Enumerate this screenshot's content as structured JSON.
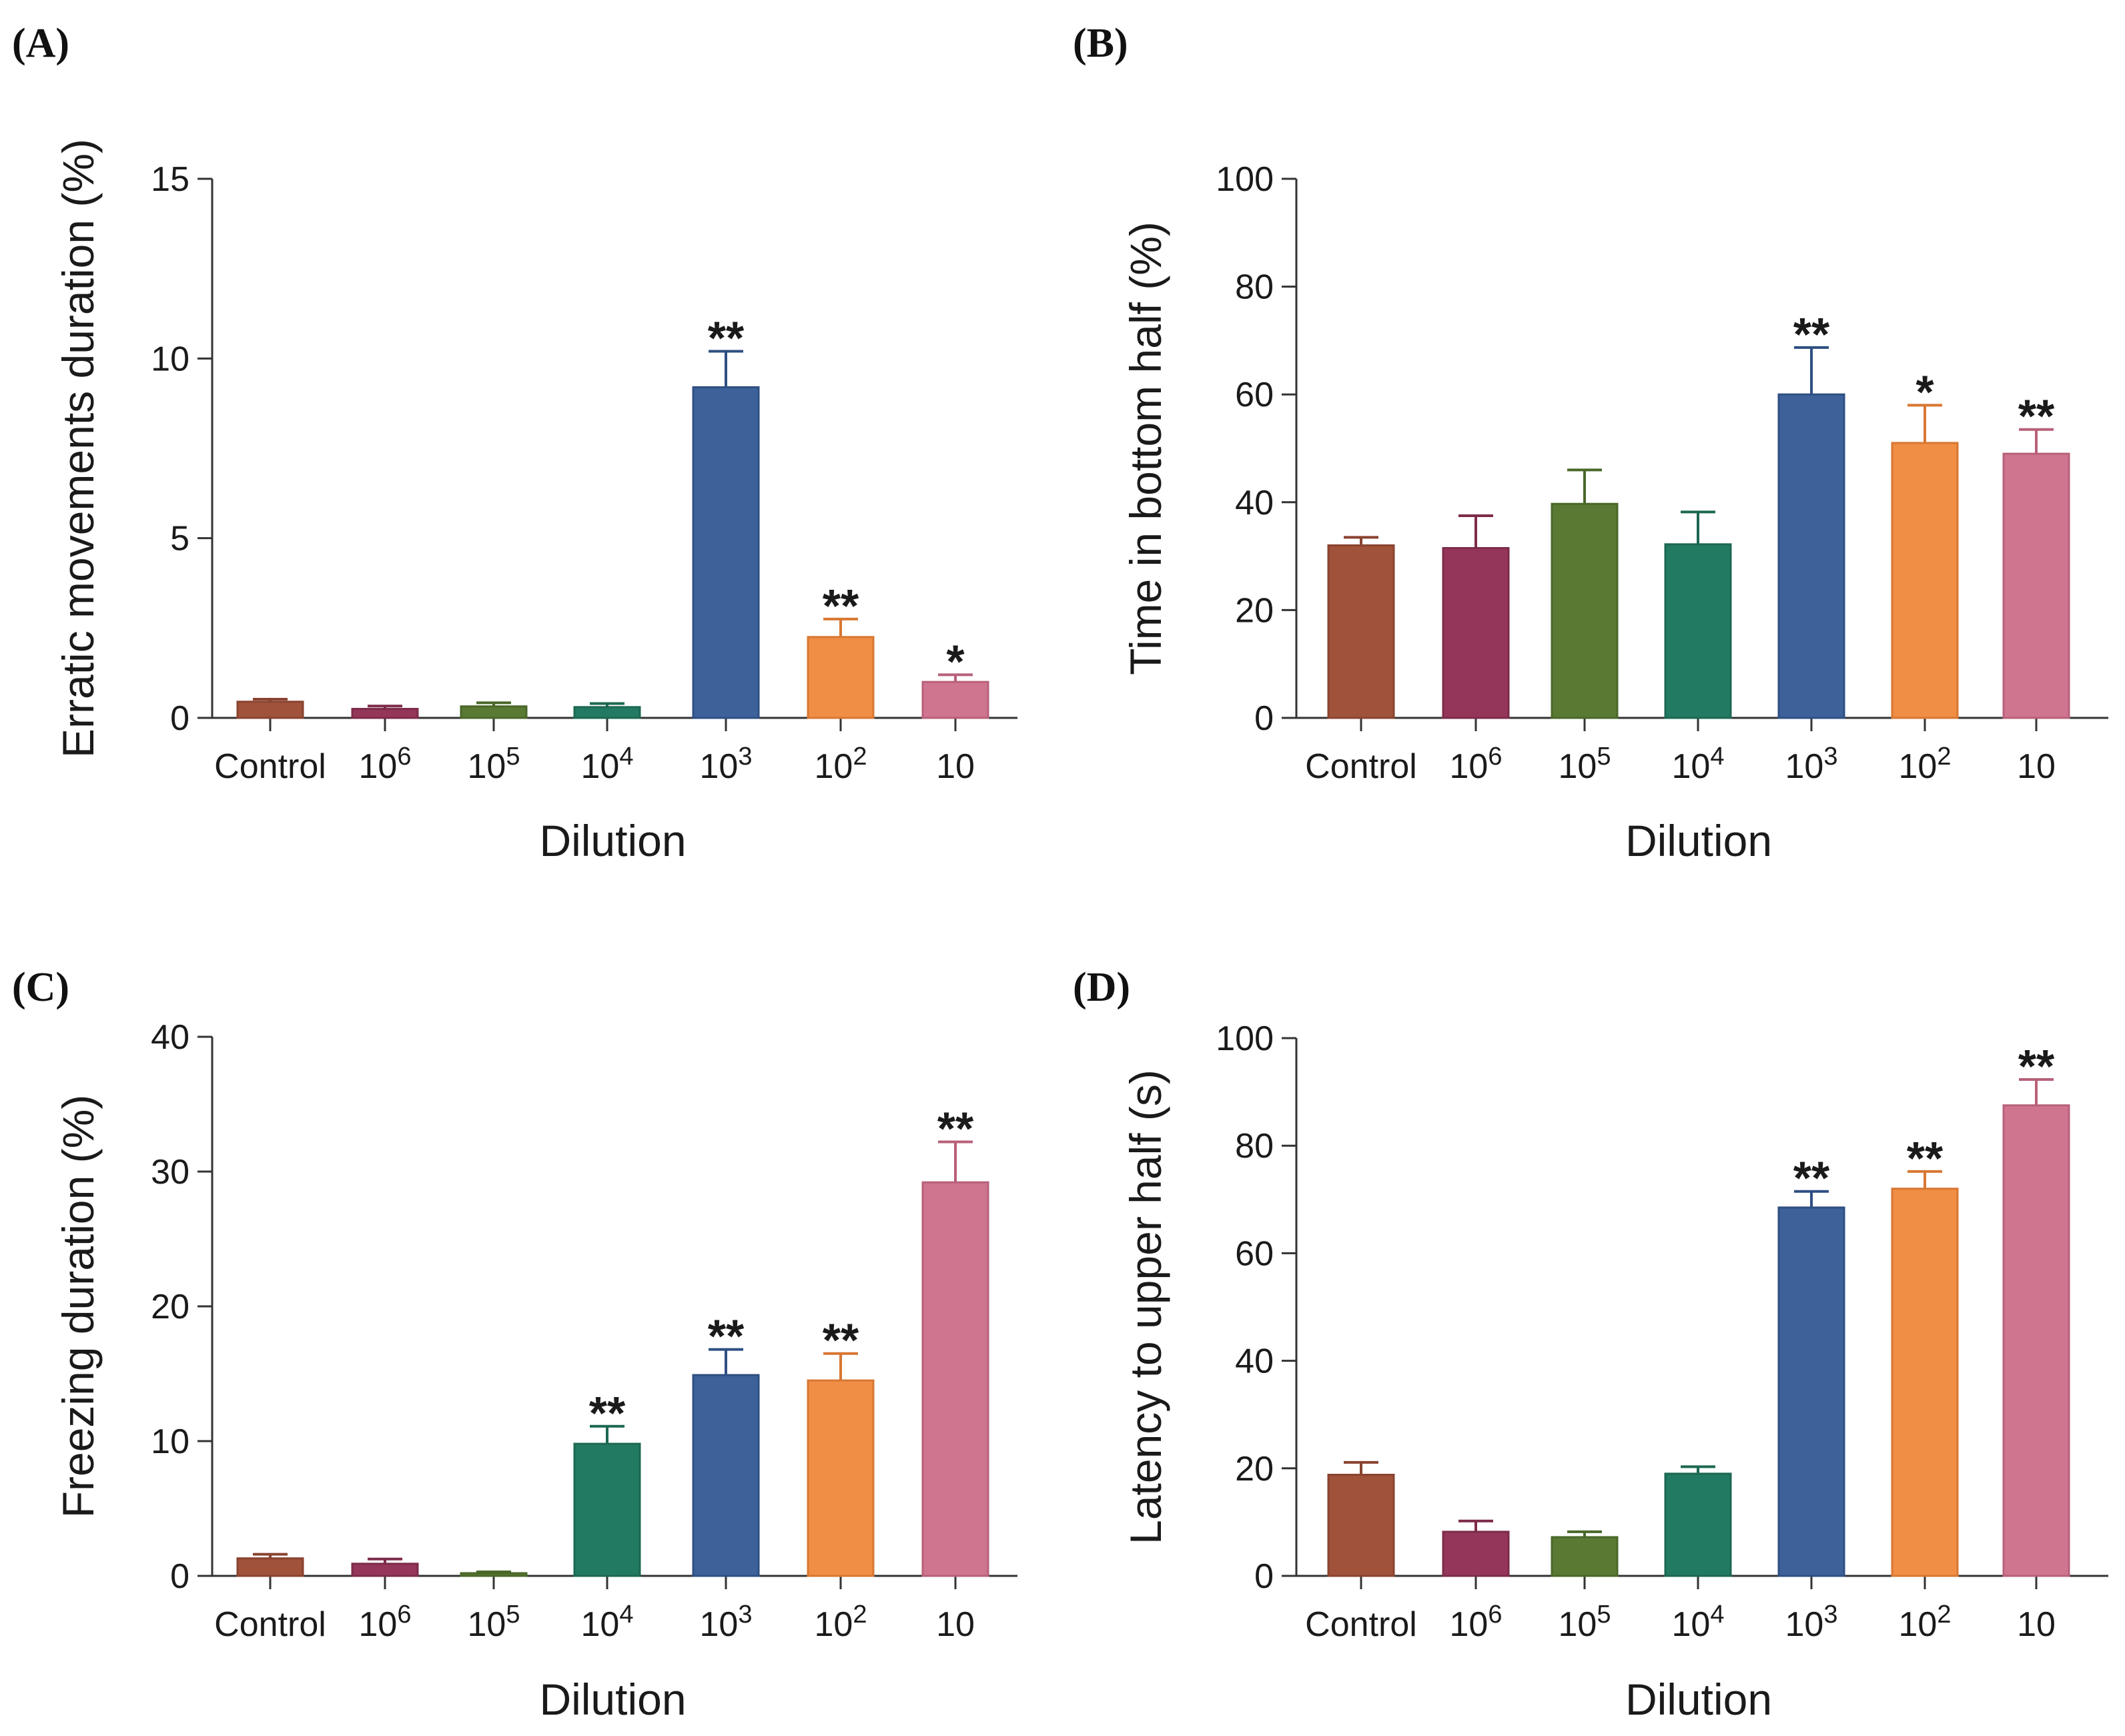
{
  "chart_data": [
    {
      "type": "bar",
      "panel": "(A)",
      "title": "",
      "xlabel": "Dilution",
      "ylabel": "Erratic movements duration (%)",
      "ylim": [
        0,
        15
      ],
      "yticks": [
        "0",
        "5",
        "10",
        "15"
      ],
      "categories": [
        {
          "base": "Control",
          "exp": ""
        },
        {
          "base": "10",
          "exp": "6"
        },
        {
          "base": "10",
          "exp": "5"
        },
        {
          "base": "10",
          "exp": "4"
        },
        {
          "base": "10",
          "exp": "3"
        },
        {
          "base": "10",
          "exp": "2"
        },
        {
          "base": "10",
          "exp": ""
        }
      ],
      "values": [
        0.45,
        0.25,
        0.32,
        0.3,
        9.2,
        2.25,
        1.0
      ],
      "errors": [
        0.07,
        0.08,
        0.1,
        0.1,
        1.0,
        0.5,
        0.2
      ],
      "significance": [
        "",
        "",
        "",
        "",
        "**",
        "**",
        "*"
      ]
    },
    {
      "type": "bar",
      "panel": "(B)",
      "title": "",
      "xlabel": "Dilution",
      "ylabel": "Time in bottom half (%)",
      "ylim": [
        0,
        100
      ],
      "yticks": [
        "0",
        "20",
        "40",
        "60",
        "80",
        "100"
      ],
      "categories": [
        {
          "base": "Control",
          "exp": ""
        },
        {
          "base": "10",
          "exp": "6"
        },
        {
          "base": "10",
          "exp": "5"
        },
        {
          "base": "10",
          "exp": "4"
        },
        {
          "base": "10",
          "exp": "3"
        },
        {
          "base": "10",
          "exp": "2"
        },
        {
          "base": "10",
          "exp": ""
        }
      ],
      "values": [
        32,
        31.5,
        39.7,
        32.2,
        60,
        51,
        49
      ],
      "errors": [
        1.5,
        6,
        6.3,
        6,
        8.7,
        7,
        4.5
      ],
      "significance": [
        "",
        "",
        "",
        "",
        "**",
        "*",
        "**"
      ]
    },
    {
      "type": "bar",
      "panel": "(C)",
      "title": "",
      "xlabel": "Dilution",
      "ylabel": "Freezing duration (%)",
      "ylim": [
        0,
        40
      ],
      "yticks": [
        "0",
        "10",
        "20",
        "30",
        "40"
      ],
      "categories": [
        {
          "base": "Control",
          "exp": ""
        },
        {
          "base": "10",
          "exp": "6"
        },
        {
          "base": "10",
          "exp": "5"
        },
        {
          "base": "10",
          "exp": "4"
        },
        {
          "base": "10",
          "exp": "3"
        },
        {
          "base": "10",
          "exp": "2"
        },
        {
          "base": "10",
          "exp": ""
        }
      ],
      "values": [
        1.3,
        0.9,
        0.2,
        9.8,
        14.9,
        14.5,
        29.2
      ],
      "errors": [
        0.3,
        0.35,
        0.1,
        1.3,
        1.9,
        2.0,
        3.0
      ],
      "significance": [
        "",
        "",
        "",
        "**",
        "**",
        "**",
        "**"
      ]
    },
    {
      "type": "bar",
      "panel": "(D)",
      "title": "",
      "xlabel": "Dilution",
      "ylabel": "Latency to upper half (s)",
      "ylim": [
        0,
        100
      ],
      "yticks": [
        "0",
        "20",
        "40",
        "60",
        "80",
        "100"
      ],
      "categories": [
        {
          "base": "Control",
          "exp": ""
        },
        {
          "base": "10",
          "exp": "6"
        },
        {
          "base": "10",
          "exp": "5"
        },
        {
          "base": "10",
          "exp": "4"
        },
        {
          "base": "10",
          "exp": "3"
        },
        {
          "base": "10",
          "exp": "2"
        },
        {
          "base": "10",
          "exp": ""
        }
      ],
      "values": [
        18.8,
        8.2,
        7.2,
        19.0,
        68.5,
        72.0,
        87.5
      ],
      "errors": [
        2.3,
        2.0,
        1.0,
        1.3,
        3.0,
        3.2,
        4.8
      ],
      "significance": [
        "",
        "",
        "",
        "",
        "**",
        "**",
        "**"
      ]
    }
  ],
  "colors": {
    "bars": [
      "#a0523a",
      "#94365a",
      "#5a7a34",
      "#237a62",
      "#3d629a",
      "#f08e45",
      "#cf7590"
    ],
    "bar_outline": [
      "#8a4330",
      "#7d2b4a",
      "#4a6829",
      "#1c6852",
      "#2f4f82",
      "#d87732",
      "#b86079"
    ],
    "axis": "#333333",
    "text": "#1a1a1a"
  }
}
